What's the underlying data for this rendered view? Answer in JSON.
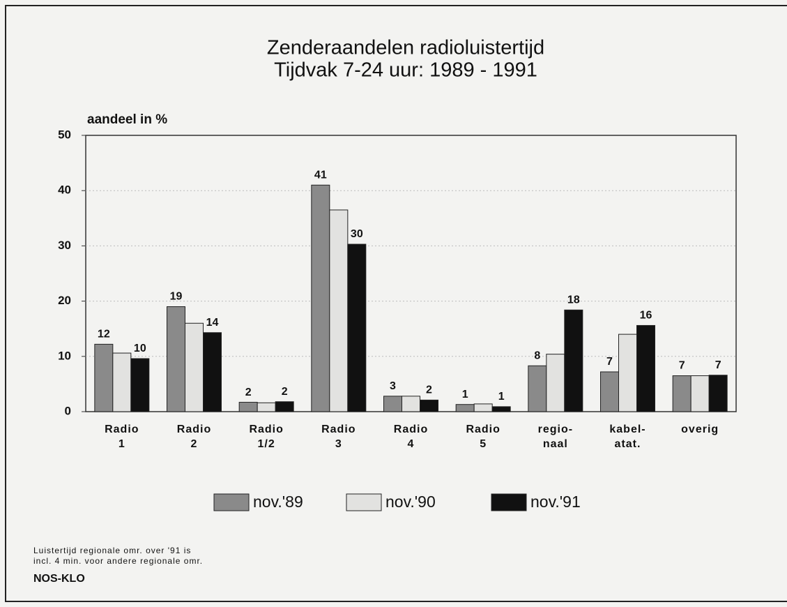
{
  "chart_data": {
    "type": "bar",
    "title": [
      "Zenderaandelen radioluistertijd",
      "Tijdvak 7-24 uur: 1989 - 1991"
    ],
    "y_label": "aandeel in %",
    "categories": [
      [
        "Radio",
        "1"
      ],
      [
        "Radio",
        "2"
      ],
      [
        "Radio",
        "1/2"
      ],
      [
        "Radio",
        "3"
      ],
      [
        "Radio",
        "4"
      ],
      [
        "Radio",
        "5"
      ],
      [
        "regio-",
        "naal"
      ],
      [
        "kabel-",
        "atat."
      ],
      [
        "overig"
      ]
    ],
    "series": [
      {
        "name": "nov.'89",
        "color": "#8a8a8a",
        "values": [
          12.2,
          19,
          1.7,
          41,
          2.8,
          1.3,
          8.3,
          7.2,
          6.5
        ],
        "value_labels": [
          "12",
          "19",
          "2",
          "41",
          "3",
          "1",
          "8",
          "7",
          "7"
        ]
      },
      {
        "name": "nov.'90",
        "color": "#e2e2e0",
        "values": [
          10.6,
          16,
          1.6,
          36.5,
          2.8,
          1.4,
          10.4,
          14,
          6.5
        ]
      },
      {
        "name": "nov.'91",
        "color": "#111111",
        "values": [
          9.6,
          14.3,
          1.8,
          30.3,
          2.1,
          0.9,
          18.4,
          15.6,
          6.6
        ],
        "value_labels": [
          "10",
          "14",
          "2",
          "30",
          "2",
          "1",
          "18",
          "16",
          "7"
        ]
      }
    ],
    "ylim": [
      0,
      50
    ],
    "yticks": [
      0,
      10,
      20,
      30,
      40,
      50
    ],
    "grid": true,
    "footnote": [
      "Luistertijd regionale omr. over '91 is",
      "incl. 4 min. voor andere regionale omr."
    ],
    "source": "NOS-KLO"
  }
}
